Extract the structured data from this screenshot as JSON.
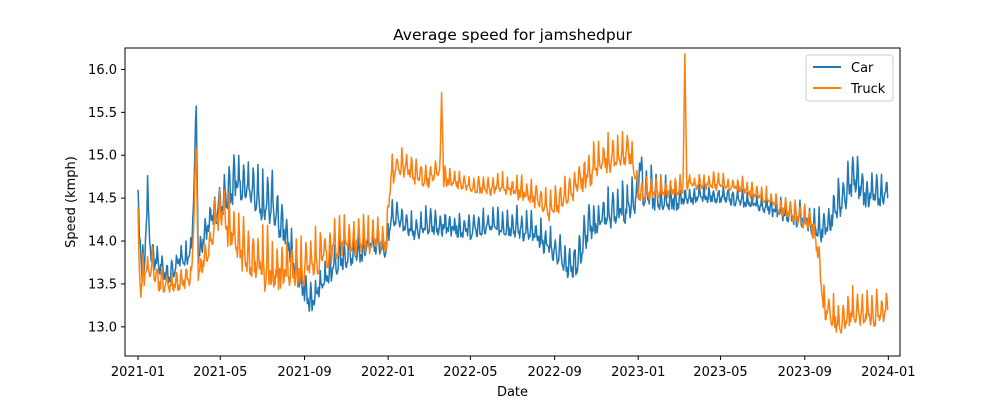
{
  "chart_data": {
    "type": "line",
    "title": "Average speed for jamshedpur",
    "xlabel": "Date",
    "ylabel": "Speed (kmph)",
    "x_range": [
      "2020-12-13",
      "2024-01-18"
    ],
    "ylim": [
      12.66,
      16.25
    ],
    "x_ticks": [
      "2021-01",
      "2021-05",
      "2021-09",
      "2022-01",
      "2022-05",
      "2022-09",
      "2023-01",
      "2023-05",
      "2023-09",
      "2024-01"
    ],
    "y_ticks": [
      13.0,
      13.5,
      14.0,
      14.5,
      15.0,
      15.5,
      16.0
    ],
    "grid": false,
    "legend_position": "upper right",
    "series": [
      {
        "name": "Car",
        "color": "#1f77b4",
        "anchors": [
          [
            "2021-01-01",
            14.3
          ],
          [
            "2021-01-04",
            14.1
          ],
          [
            "2021-01-07",
            13.55
          ],
          [
            "2021-01-10",
            13.7
          ],
          [
            "2021-01-15",
            14.5
          ],
          [
            "2021-01-20",
            13.8
          ],
          [
            "2021-02-01",
            13.7
          ],
          [
            "2021-02-15",
            13.55
          ],
          [
            "2021-03-01",
            13.75
          ],
          [
            "2021-03-20",
            13.8
          ],
          [
            "2021-03-27",
            15.5
          ],
          [
            "2021-03-30",
            13.8
          ],
          [
            "2021-04-15",
            14.2
          ],
          [
            "2021-05-01",
            14.4
          ],
          [
            "2021-05-15",
            14.6
          ],
          [
            "2021-06-01",
            14.65
          ],
          [
            "2021-06-15",
            14.5
          ],
          [
            "2021-07-01",
            14.3
          ],
          [
            "2021-07-15",
            14.4
          ],
          [
            "2021-08-01",
            14.1
          ],
          [
            "2021-08-15",
            13.8
          ],
          [
            "2021-08-27",
            13.5
          ],
          [
            "2021-09-05",
            13.35
          ],
          [
            "2021-09-10",
            13.2
          ],
          [
            "2021-09-20",
            13.4
          ],
          [
            "2021-10-01",
            13.5
          ],
          [
            "2021-10-15",
            13.7
          ],
          [
            "2021-11-01",
            13.8
          ],
          [
            "2021-11-15",
            13.85
          ],
          [
            "2021-12-01",
            13.9
          ],
          [
            "2021-12-15",
            13.95
          ],
          [
            "2021-12-30",
            13.9
          ],
          [
            "2022-01-05",
            14.3
          ],
          [
            "2022-01-20",
            14.2
          ],
          [
            "2022-02-05",
            14.1
          ],
          [
            "2022-03-01",
            14.15
          ],
          [
            "2022-04-01",
            14.15
          ],
          [
            "2022-05-01",
            14.1
          ],
          [
            "2022-06-01",
            14.15
          ],
          [
            "2022-07-01",
            14.15
          ],
          [
            "2022-08-01",
            14.05
          ],
          [
            "2022-08-25",
            13.9
          ],
          [
            "2022-09-10",
            13.8
          ],
          [
            "2022-09-25",
            13.65
          ],
          [
            "2022-10-05",
            13.75
          ],
          [
            "2022-10-20",
            14.1
          ],
          [
            "2022-11-15",
            14.25
          ],
          [
            "2022-12-15",
            14.35
          ],
          [
            "2023-01-01",
            14.5
          ],
          [
            "2023-01-03",
            15.0
          ],
          [
            "2023-01-08",
            14.55
          ],
          [
            "2023-02-01",
            14.45
          ],
          [
            "2023-03-01",
            14.45
          ],
          [
            "2023-04-01",
            14.5
          ],
          [
            "2023-05-01",
            14.5
          ],
          [
            "2023-06-01",
            14.45
          ],
          [
            "2023-07-01",
            14.4
          ],
          [
            "2023-08-01",
            14.3
          ],
          [
            "2023-08-25",
            14.25
          ],
          [
            "2023-09-10",
            14.2
          ],
          [
            "2023-09-20",
            14.05
          ],
          [
            "2023-10-01",
            14.1
          ],
          [
            "2023-10-15",
            14.35
          ],
          [
            "2023-11-01",
            14.5
          ],
          [
            "2023-11-10",
            14.7
          ],
          [
            "2023-12-01",
            14.5
          ],
          [
            "2023-12-20",
            14.5
          ],
          [
            "2023-12-31",
            14.55
          ]
        ],
        "amplitude": [
          [
            "2021-01-01",
            0.3
          ],
          [
            "2021-02-15",
            0.18
          ],
          [
            "2021-04-10",
            0.2
          ],
          [
            "2021-05-15",
            0.4
          ],
          [
            "2021-07-15",
            0.4
          ],
          [
            "2021-09-01",
            0.25
          ],
          [
            "2021-11-01",
            0.25
          ],
          [
            "2022-01-10",
            0.22
          ],
          [
            "2022-05-01",
            0.18
          ],
          [
            "2022-09-01",
            0.25
          ],
          [
            "2022-11-01",
            0.3
          ],
          [
            "2023-01-15",
            0.3
          ],
          [
            "2023-04-01",
            0.12
          ],
          [
            "2023-07-01",
            0.12
          ],
          [
            "2023-09-15",
            0.25
          ],
          [
            "2023-11-15",
            0.3
          ],
          [
            "2023-12-31",
            0.2
          ]
        ]
      },
      {
        "name": "Truck",
        "color": "#ff7f0e",
        "anchors": [
          [
            "2021-01-01",
            14.05
          ],
          [
            "2021-01-05",
            13.4
          ],
          [
            "2021-01-10",
            13.6
          ],
          [
            "2021-01-20",
            13.65
          ],
          [
            "2021-02-01",
            13.5
          ],
          [
            "2021-02-15",
            13.45
          ],
          [
            "2021-03-01",
            13.5
          ],
          [
            "2021-03-20",
            13.55
          ],
          [
            "2021-03-27",
            15.05
          ],
          [
            "2021-03-30",
            13.6
          ],
          [
            "2021-04-15",
            13.9
          ],
          [
            "2021-05-01",
            14.35
          ],
          [
            "2021-05-15",
            14.05
          ],
          [
            "2021-06-01",
            13.85
          ],
          [
            "2021-06-15",
            13.75
          ],
          [
            "2021-07-01",
            13.65
          ],
          [
            "2021-07-15",
            13.55
          ],
          [
            "2021-08-01",
            13.6
          ],
          [
            "2021-08-15",
            13.6
          ],
          [
            "2021-09-01",
            13.6
          ],
          [
            "2021-09-15",
            13.75
          ],
          [
            "2021-10-01",
            13.8
          ],
          [
            "2021-10-15",
            13.9
          ],
          [
            "2021-11-01",
            13.95
          ],
          [
            "2021-11-15",
            13.95
          ],
          [
            "2021-12-01",
            13.95
          ],
          [
            "2021-12-30",
            14.0
          ],
          [
            "2022-01-05",
            14.75
          ],
          [
            "2022-01-20",
            14.85
          ],
          [
            "2022-02-10",
            14.75
          ],
          [
            "2022-03-01",
            14.7
          ],
          [
            "2022-03-18",
            14.8
          ],
          [
            "2022-03-20",
            15.8
          ],
          [
            "2022-03-23",
            14.7
          ],
          [
            "2022-04-15",
            14.65
          ],
          [
            "2022-05-15",
            14.6
          ],
          [
            "2022-06-15",
            14.6
          ],
          [
            "2022-07-15",
            14.55
          ],
          [
            "2022-08-10",
            14.45
          ],
          [
            "2022-08-25",
            14.3
          ],
          [
            "2022-09-10",
            14.45
          ],
          [
            "2022-10-01",
            14.6
          ],
          [
            "2022-11-01",
            14.85
          ],
          [
            "2022-12-01",
            14.95
          ],
          [
            "2022-12-20",
            15.0
          ],
          [
            "2023-01-01",
            14.55
          ],
          [
            "2023-02-01",
            14.55
          ],
          [
            "2023-03-07",
            14.6
          ],
          [
            "2023-03-10",
            16.0
          ],
          [
            "2023-03-13",
            14.65
          ],
          [
            "2023-04-01",
            14.65
          ],
          [
            "2023-05-01",
            14.65
          ],
          [
            "2023-06-01",
            14.6
          ],
          [
            "2023-07-01",
            14.5
          ],
          [
            "2023-08-01",
            14.35
          ],
          [
            "2023-08-25",
            14.25
          ],
          [
            "2023-09-10",
            14.2
          ],
          [
            "2023-09-20",
            13.9
          ],
          [
            "2023-09-28",
            13.2
          ],
          [
            "2023-10-10",
            13.1
          ],
          [
            "2023-10-25",
            13.0
          ],
          [
            "2023-11-10",
            13.15
          ],
          [
            "2023-11-25",
            13.1
          ],
          [
            "2023-12-10",
            13.1
          ],
          [
            "2023-12-31",
            13.15
          ]
        ],
        "amplitude": [
          [
            "2021-01-01",
            0.3
          ],
          [
            "2021-02-15",
            0.15
          ],
          [
            "2021-04-10",
            0.2
          ],
          [
            "2021-05-15",
            0.4
          ],
          [
            "2021-07-15",
            0.45
          ],
          [
            "2021-09-01",
            0.35
          ],
          [
            "2021-11-01",
            0.3
          ],
          [
            "2022-01-10",
            0.22
          ],
          [
            "2022-05-01",
            0.12
          ],
          [
            "2022-09-01",
            0.22
          ],
          [
            "2022-11-01",
            0.3
          ],
          [
            "2023-01-15",
            0.18
          ],
          [
            "2023-04-01",
            0.12
          ],
          [
            "2023-07-01",
            0.12
          ],
          [
            "2023-09-15",
            0.2
          ],
          [
            "2023-10-15",
            0.25
          ],
          [
            "2023-12-31",
            0.25
          ]
        ]
      }
    ]
  }
}
